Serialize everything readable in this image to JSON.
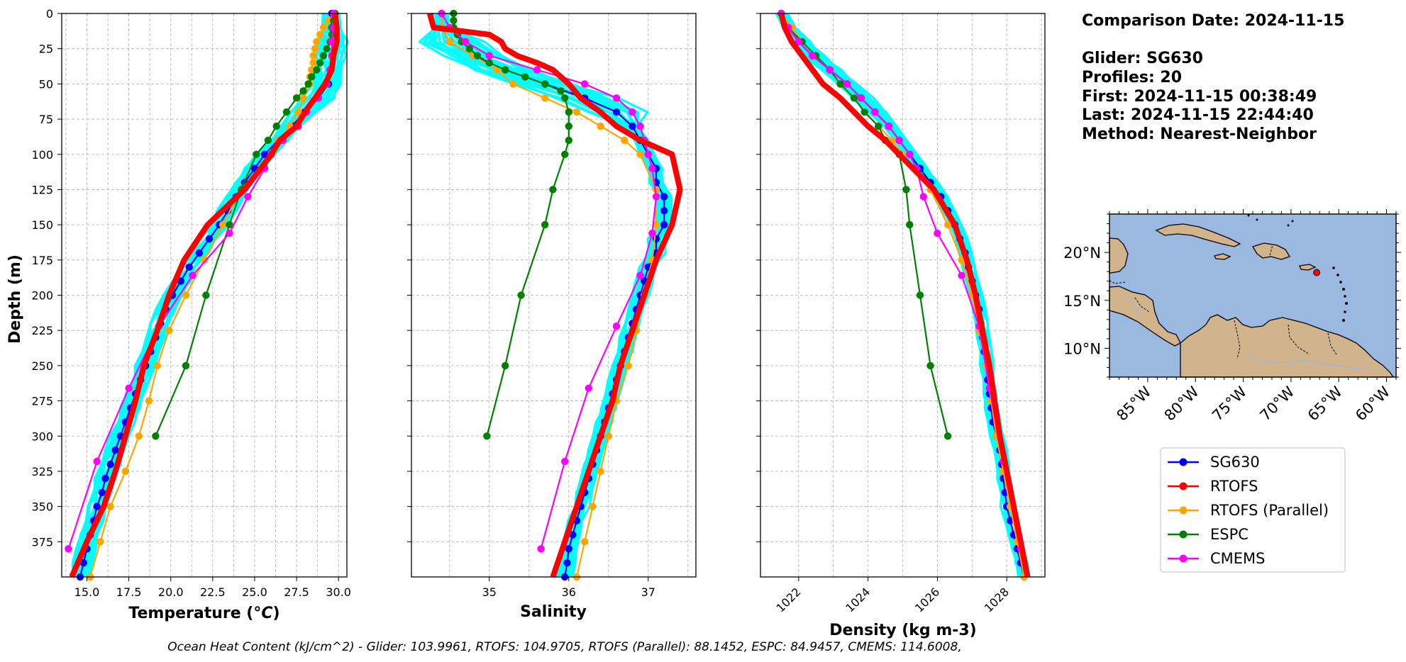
{
  "info": {
    "comparison_date": "Comparison Date: 2024-11-15",
    "glider": "Glider: SG630",
    "profiles": "Profiles: 20",
    "first": "First: 2024-11-15 00:38:49",
    "last": "Last: 2024-11-15 22:44:40",
    "method": "Method: Nearest-Neighbor"
  },
  "footer": "Ocean Heat Content (kJ/cm^2) - Glider: 103.9961,  RTOFS: 104.9705,  RTOFS (Parallel): 88.1452,  ESPC: 84.9457,  CMEMS: 114.6008,",
  "colors": {
    "SG630": "#0000ff",
    "RTOFS": "#ff0000",
    "RTOFS (Parallel)": "#ffa500",
    "ESPC": "#008000",
    "CMEMS": "#ff00ff",
    "profiles": "#00ffff",
    "ocean": "#9bb8e0",
    "land": "#d2b48c"
  },
  "legend": [
    "SG630",
    "RTOFS",
    "RTOFS (Parallel)",
    "ESPC",
    "CMEMS"
  ],
  "map": {
    "lon_labels": [
      "85°W",
      "80°W",
      "75°W",
      "70°W",
      "65°W",
      "60°W"
    ],
    "lat_labels": [
      "20°N",
      "15°N",
      "10°N"
    ],
    "lon_range": [
      -89,
      -59
    ],
    "lat_range": [
      7,
      24
    ],
    "glider_position": {
      "lon": -67.3,
      "lat": 17.9
    }
  },
  "chart_data": [
    {
      "type": "line",
      "ylabel": "Depth (m)",
      "xlabel": "Temperature (°C)",
      "xlim": [
        13.5,
        30.5
      ],
      "ylim": [
        400,
        0
      ],
      "xticks": [
        15.0,
        17.5,
        20.0,
        22.5,
        25.0,
        27.5,
        30.0
      ],
      "xtick_labels": [
        "15.0",
        "17.5",
        "20.0",
        "22.5",
        "25.0",
        "27.5",
        "30.0"
      ],
      "yticks": [
        0,
        25,
        50,
        75,
        100,
        125,
        150,
        175,
        200,
        225,
        250,
        275,
        300,
        325,
        350,
        375
      ],
      "grid": true,
      "series": [
        {
          "name": "SG630",
          "depth": [
            0,
            10,
            20,
            30,
            40,
            50,
            60,
            70,
            80,
            90,
            100,
            110,
            120,
            130,
            140,
            150,
            160,
            170,
            180,
            190,
            200,
            210,
            220,
            230,
            240,
            250,
            260,
            270,
            280,
            290,
            300,
            310,
            320,
            330,
            340,
            350,
            360,
            370,
            380,
            390,
            400
          ],
          "values": [
            29.6,
            29.6,
            29.6,
            29.6,
            29.5,
            29.4,
            28.8,
            28.0,
            27.2,
            26.4,
            25.6,
            25.0,
            24.4,
            23.9,
            23.4,
            22.9,
            22.3,
            21.7,
            21.1,
            20.6,
            20.1,
            19.7,
            19.4,
            19.1,
            18.8,
            18.5,
            18.2,
            17.9,
            17.6,
            17.3,
            17.0,
            16.7,
            16.4,
            16.1,
            15.9,
            15.6,
            15.4,
            15.2,
            15.0,
            14.8,
            14.6
          ]
        },
        {
          "name": "RTOFS",
          "depth": [
            0,
            10,
            20,
            30,
            40,
            50,
            60,
            70,
            80,
            90,
            100,
            125,
            150,
            175,
            200,
            225,
            250,
            275,
            300,
            325,
            350,
            375,
            400
          ],
          "values": [
            29.8,
            29.9,
            29.9,
            29.7,
            29.6,
            29.2,
            28.6,
            28.0,
            27.5,
            26.5,
            26.0,
            24.4,
            22.2,
            20.8,
            19.9,
            19.2,
            18.4,
            17.9,
            17.3,
            16.7,
            16.0,
            15.0,
            14.1
          ]
        },
        {
          "name": "RTOFS (Parallel)",
          "depth": [
            0,
            5,
            10,
            15,
            20,
            25,
            30,
            35,
            40,
            45,
            50,
            60,
            70,
            80,
            90,
            100,
            125,
            150,
            175,
            200,
            225,
            250,
            275,
            300,
            325,
            350,
            375,
            400
          ],
          "values": [
            29.8,
            29.4,
            29.1,
            28.9,
            28.7,
            28.6,
            28.5,
            28.5,
            28.4,
            28.3,
            28.3,
            27.9,
            27.6,
            27.1,
            26.4,
            26.0,
            24.2,
            23.1,
            22.0,
            20.9,
            19.9,
            19.2,
            18.7,
            18.1,
            17.3,
            16.4,
            15.8,
            15.2
          ]
        },
        {
          "name": "ESPC",
          "depth": [
            0,
            5,
            10,
            15,
            20,
            25,
            30,
            35,
            40,
            45,
            50,
            55,
            60,
            70,
            80,
            90,
            100,
            125,
            150,
            200,
            250,
            300
          ],
          "values": [
            29.8,
            29.7,
            29.6,
            29.6,
            29.5,
            29.3,
            29.1,
            28.9,
            28.7,
            28.4,
            28.2,
            27.9,
            27.5,
            26.9,
            26.3,
            25.8,
            25.1,
            24.2,
            23.5,
            22.1,
            20.9,
            19.1
          ]
        },
        {
          "name": "CMEMS",
          "depth": [
            0,
            10,
            20,
            30,
            40,
            50,
            60,
            70,
            80,
            90,
            100,
            110,
            130,
            156,
            186,
            222,
            266,
            318,
            380
          ],
          "values": [
            29.7,
            29.7,
            29.6,
            29.6,
            29.5,
            29.3,
            28.8,
            28.1,
            27.6,
            26.7,
            26.0,
            25.6,
            24.6,
            23.5,
            21.3,
            19.3,
            17.5,
            15.6,
            13.9
          ]
        }
      ]
    },
    {
      "type": "line",
      "xlabel": "Salinity",
      "xlim": [
        34.02,
        37.6
      ],
      "ylim": [
        400,
        0
      ],
      "xticks": [
        35,
        36,
        37
      ],
      "xtick_labels": [
        "35",
        "36",
        "37"
      ],
      "grid": true,
      "series": [
        {
          "name": "SG630",
          "depth": [
            0,
            10,
            20,
            30,
            40,
            50,
            60,
            70,
            80,
            90,
            100,
            110,
            120,
            130,
            140,
            150,
            160,
            170,
            180,
            190,
            200,
            210,
            220,
            230,
            240,
            250,
            260,
            270,
            280,
            290,
            300,
            310,
            320,
            330,
            340,
            350,
            360,
            370,
            380,
            390,
            400
          ],
          "values": [
            34.4,
            34.4,
            34.5,
            34.8,
            35.2,
            35.7,
            36.2,
            36.6,
            36.8,
            36.9,
            37.0,
            37.1,
            37.1,
            37.2,
            37.2,
            37.2,
            37.1,
            37.1,
            37.0,
            36.95,
            36.9,
            36.85,
            36.8,
            36.75,
            36.7,
            36.65,
            36.6,
            36.55,
            36.5,
            36.45,
            36.4,
            36.35,
            36.3,
            36.25,
            36.2,
            36.15,
            36.1,
            36.05,
            36.0,
            35.98,
            35.95
          ]
        },
        {
          "name": "RTOFS",
          "depth": [
            0,
            10,
            15,
            20,
            25,
            30,
            35,
            40,
            50,
            60,
            70,
            80,
            90,
            100,
            125,
            150,
            175,
            200,
            225,
            250,
            275,
            300,
            325,
            350,
            375,
            400
          ],
          "values": [
            34.25,
            34.3,
            35.0,
            35.15,
            35.2,
            35.35,
            35.6,
            35.8,
            36.0,
            36.15,
            36.4,
            36.6,
            36.9,
            37.3,
            37.4,
            37.3,
            37.1,
            36.95,
            36.8,
            36.65,
            36.55,
            36.4,
            36.25,
            36.1,
            35.95,
            35.8
          ]
        },
        {
          "name": "RTOFS (Parallel)",
          "depth": [
            0,
            10,
            20,
            30,
            40,
            50,
            60,
            70,
            80,
            90,
            100,
            125,
            150,
            175,
            200,
            225,
            250,
            275,
            300,
            325,
            350,
            375,
            400
          ],
          "values": [
            34.4,
            34.4,
            34.5,
            34.8,
            35.1,
            35.3,
            35.7,
            36.1,
            36.4,
            36.7,
            36.9,
            37.1,
            37.1,
            37.05,
            36.95,
            36.85,
            36.75,
            36.6,
            36.5,
            36.4,
            36.3,
            36.2,
            36.1
          ]
        },
        {
          "name": "ESPC",
          "depth": [
            0,
            5,
            10,
            15,
            20,
            25,
            30,
            35,
            40,
            45,
            50,
            55,
            60,
            70,
            80,
            90,
            100,
            125,
            150,
            200,
            250,
            300
          ],
          "values": [
            34.55,
            34.55,
            34.55,
            34.6,
            34.65,
            34.75,
            34.85,
            35.0,
            35.2,
            35.45,
            35.7,
            35.9,
            35.95,
            36.0,
            36.0,
            36.0,
            35.95,
            35.8,
            35.7,
            35.4,
            35.2,
            34.97
          ]
        },
        {
          "name": "CMEMS",
          "depth": [
            0,
            10,
            20,
            30,
            40,
            50,
            60,
            70,
            80,
            90,
            100,
            110,
            130,
            156,
            186,
            222,
            266,
            318,
            380
          ],
          "values": [
            34.4,
            34.5,
            34.7,
            35.0,
            35.6,
            36.2,
            36.6,
            36.8,
            36.9,
            36.95,
            37.0,
            37.05,
            37.1,
            37.05,
            36.9,
            36.6,
            36.25,
            35.95,
            35.65
          ]
        }
      ]
    },
    {
      "type": "line",
      "xlabel": "Density (kg m-3)",
      "xlim": [
        1020.9,
        1029.1
      ],
      "ylim": [
        400,
        0
      ],
      "xticks": [
        1022,
        1024,
        1026,
        1028
      ],
      "xtick_labels": [
        "1022",
        "1024",
        "1026",
        "1028"
      ],
      "grid": true,
      "series": [
        {
          "name": "SG630",
          "depth": [
            0,
            10,
            20,
            30,
            40,
            50,
            60,
            70,
            80,
            90,
            100,
            110,
            120,
            130,
            140,
            150,
            160,
            170,
            180,
            190,
            200,
            210,
            220,
            230,
            240,
            250,
            260,
            270,
            280,
            290,
            300,
            310,
            320,
            330,
            340,
            350,
            360,
            370,
            380,
            390,
            400
          ],
          "values": [
            1021.5,
            1021.7,
            1022.0,
            1022.4,
            1022.9,
            1023.4,
            1023.8,
            1024.2,
            1024.6,
            1024.9,
            1025.2,
            1025.5,
            1025.8,
            1026.1,
            1026.3,
            1026.5,
            1026.65,
            1026.8,
            1026.9,
            1027.0,
            1027.1,
            1027.2,
            1027.25,
            1027.3,
            1027.35,
            1027.4,
            1027.45,
            1027.5,
            1027.55,
            1027.6,
            1027.7,
            1027.8,
            1027.85,
            1027.9,
            1027.95,
            1028.0,
            1028.1,
            1028.2,
            1028.3,
            1028.4,
            1028.5
          ]
        },
        {
          "name": "RTOFS",
          "depth": [
            0,
            10,
            20,
            30,
            40,
            50,
            60,
            70,
            80,
            90,
            100,
            125,
            150,
            175,
            200,
            225,
            250,
            275,
            300,
            325,
            350,
            375,
            400
          ],
          "values": [
            1021.5,
            1021.6,
            1021.8,
            1022.1,
            1022.4,
            1022.7,
            1023.2,
            1023.6,
            1024.0,
            1024.5,
            1024.9,
            1025.9,
            1026.5,
            1026.85,
            1027.1,
            1027.3,
            1027.5,
            1027.65,
            1027.8,
            1028.0,
            1028.2,
            1028.4,
            1028.6
          ]
        },
        {
          "name": "RTOFS (Parallel)",
          "depth": [
            0,
            10,
            20,
            30,
            40,
            50,
            60,
            70,
            80,
            90,
            100,
            125,
            150,
            175,
            200,
            225,
            250,
            275,
            300,
            325,
            350,
            375,
            400
          ],
          "values": [
            1021.5,
            1021.8,
            1022.1,
            1022.5,
            1022.9,
            1023.2,
            1023.6,
            1023.9,
            1024.3,
            1024.7,
            1025.0,
            1025.8,
            1026.3,
            1026.7,
            1027.0,
            1027.2,
            1027.4,
            1027.55,
            1027.7,
            1027.9,
            1028.1,
            1028.3,
            1028.5
          ]
        },
        {
          "name": "ESPC",
          "depth": [
            0,
            10,
            20,
            30,
            40,
            50,
            60,
            70,
            80,
            90,
            100,
            125,
            150,
            200,
            250,
            300
          ],
          "values": [
            1021.5,
            1021.7,
            1022.1,
            1022.5,
            1022.9,
            1023.2,
            1023.6,
            1023.9,
            1024.3,
            1024.5,
            1024.9,
            1025.1,
            1025.2,
            1025.5,
            1025.8,
            1026.3
          ]
        },
        {
          "name": "CMEMS",
          "depth": [
            0,
            10,
            20,
            30,
            40,
            50,
            60,
            70,
            80,
            90,
            100,
            110,
            130,
            156,
            186,
            222,
            266,
            318,
            380
          ],
          "values": [
            1021.5,
            1021.7,
            1022.0,
            1022.4,
            1022.9,
            1023.4,
            1023.8,
            1024.2,
            1024.6,
            1024.9,
            1025.2,
            1025.4,
            1025.6,
            1026.0,
            1026.7,
            1027.2,
            1027.5,
            1027.9,
            1028.4
          ]
        }
      ]
    }
  ]
}
